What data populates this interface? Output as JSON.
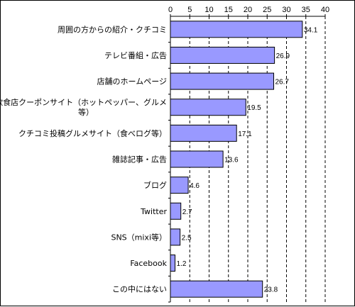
{
  "chart_data": {
    "type": "bar",
    "orientation": "horizontal",
    "title": "",
    "xlabel": "",
    "ylabel": "",
    "xlim": [
      0,
      40
    ],
    "x_ticks": [
      0,
      5,
      10,
      15,
      20,
      25,
      30,
      35,
      40
    ],
    "x_axis_position": "top",
    "grid": "vertical-dashed",
    "legend": "none",
    "bar_color": "#9999ff",
    "bar_edge_color": "#000000",
    "categories": [
      [
        "周囲の方からの紹介・クチコミ"
      ],
      [
        "テレビ番組・広告"
      ],
      [
        "店舗のホームページ"
      ],
      [
        "飲食店クーポンサイト（ホットペッパー、グルメ",
        "等）"
      ],
      [
        "クチコミ投稿グルメサイト（食べログ等）"
      ],
      [
        "雑誌記事・広告"
      ],
      [
        "ブログ"
      ],
      [
        "Twitter"
      ],
      [
        "SNS（mixi等）"
      ],
      [
        "Facebook"
      ],
      [
        "この中にはない"
      ]
    ],
    "values": [
      34.1,
      26.9,
      26.7,
      19.5,
      17.1,
      13.6,
      4.6,
      2.7,
      2.5,
      1.2,
      23.8
    ],
    "value_labels": [
      "34.1",
      "26.9",
      "26.7",
      "19.5",
      "17.1",
      "13.6",
      "4.6",
      "2.7",
      "2.5",
      "1.2",
      "23.8"
    ]
  }
}
